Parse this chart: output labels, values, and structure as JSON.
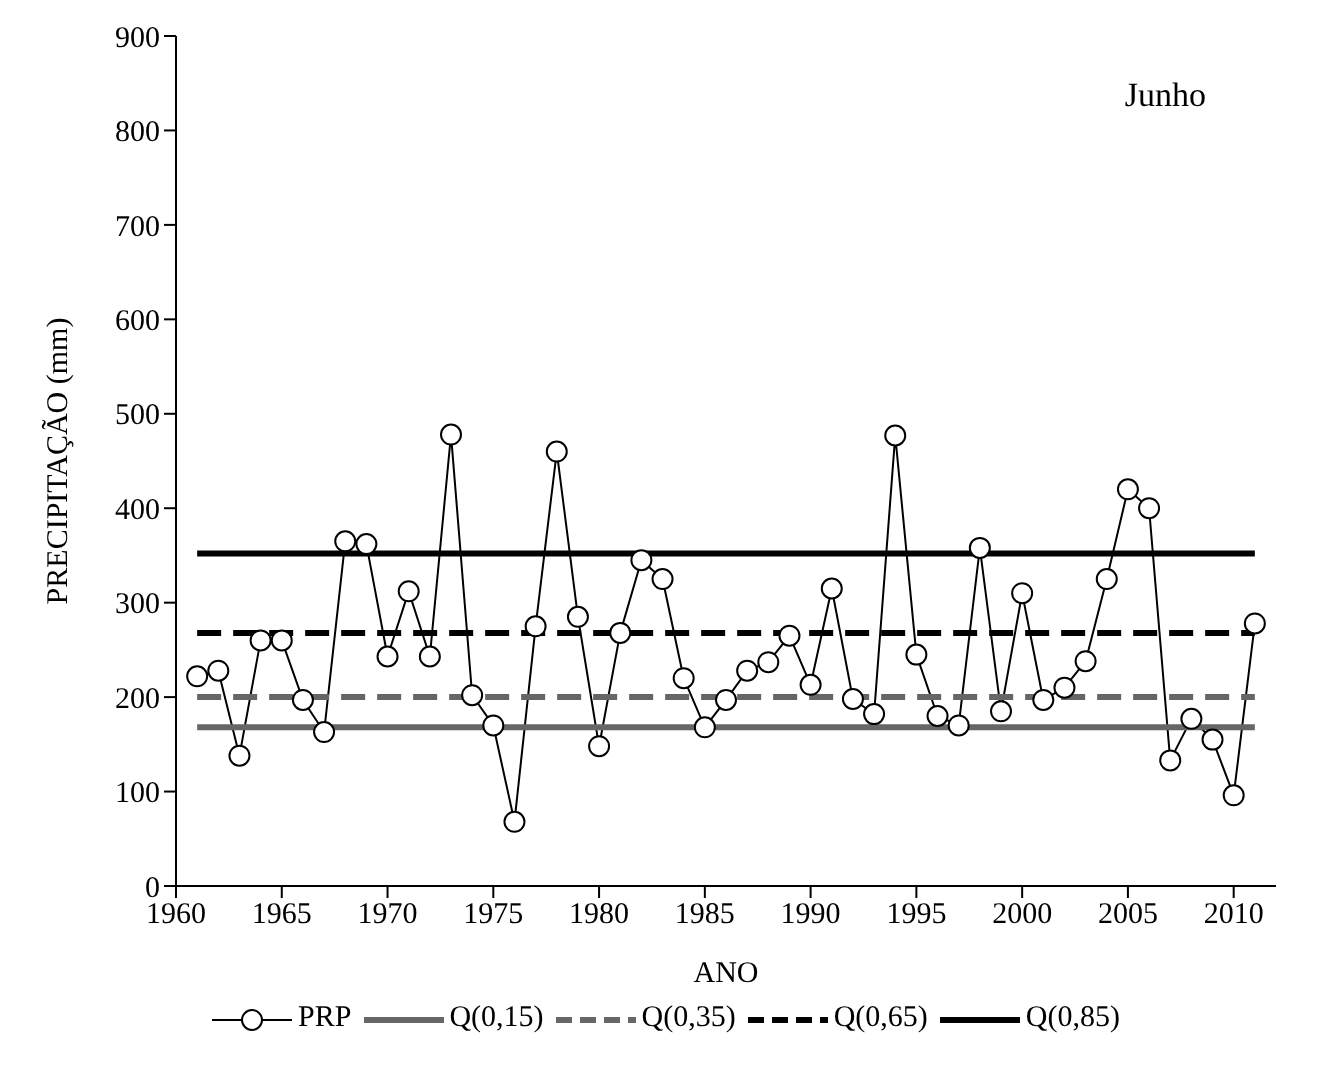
{
  "chart_data": {
    "type": "line",
    "xlabel": "ANO",
    "ylabel": "PRECIPITAÇÃO  (mm)",
    "annotations": [
      "Junho"
    ],
    "xlim": [
      1960,
      2012
    ],
    "xticks": [
      1960,
      1965,
      1970,
      1975,
      1980,
      1985,
      1990,
      1995,
      2000,
      2005,
      2010
    ],
    "ylim": [
      0,
      900
    ],
    "yticks": [
      0,
      100,
      200,
      300,
      400,
      500,
      600,
      700,
      800,
      900
    ],
    "legend": "bottom",
    "series": [
      {
        "name": "PRP",
        "color": "#000000",
        "marker": "circle",
        "line_style": "solid",
        "x": [
          1961,
          1962,
          1963,
          1964,
          1965,
          1966,
          1967,
          1968,
          1969,
          1970,
          1971,
          1972,
          1973,
          1974,
          1975,
          1976,
          1977,
          1978,
          1979,
          1980,
          1981,
          1982,
          1983,
          1984,
          1985,
          1986,
          1987,
          1988,
          1989,
          1990,
          1991,
          1992,
          1993,
          1994,
          1995,
          1996,
          1997,
          1998,
          1999,
          2000,
          2001,
          2002,
          2003,
          2004,
          2005,
          2006,
          2007,
          2008,
          2009,
          2010,
          2011
        ],
        "values": [
          222,
          228,
          138,
          260,
          260,
          197,
          163,
          365,
          362,
          243,
          312,
          243,
          478,
          202,
          170,
          68,
          275,
          460,
          285,
          148,
          268,
          345,
          325,
          220,
          168,
          197,
          228,
          237,
          265,
          213,
          315,
          198,
          182,
          477,
          245,
          180,
          170,
          358,
          185,
          310,
          197,
          210,
          238,
          325,
          420,
          400,
          133,
          177,
          155,
          96,
          278
        ]
      },
      {
        "name": "Q(0,15)",
        "color": "#666666",
        "marker": "none",
        "line_style": "solid",
        "x": [
          1961,
          2011
        ],
        "values": [
          168,
          168
        ]
      },
      {
        "name": "Q(0,35)",
        "color": "#666666",
        "marker": "none",
        "line_style": "dashed",
        "x": [
          1961,
          2011
        ],
        "values": [
          200,
          200
        ]
      },
      {
        "name": "Q(0,65)",
        "color": "#000000",
        "marker": "none",
        "line_style": "dashed",
        "x": [
          1961,
          2011
        ],
        "values": [
          268,
          268
        ]
      },
      {
        "name": "Q(0,85)",
        "color": "#000000",
        "marker": "none",
        "line_style": "solid",
        "x": [
          1961,
          2011
        ],
        "values": [
          352,
          352
        ]
      }
    ]
  }
}
